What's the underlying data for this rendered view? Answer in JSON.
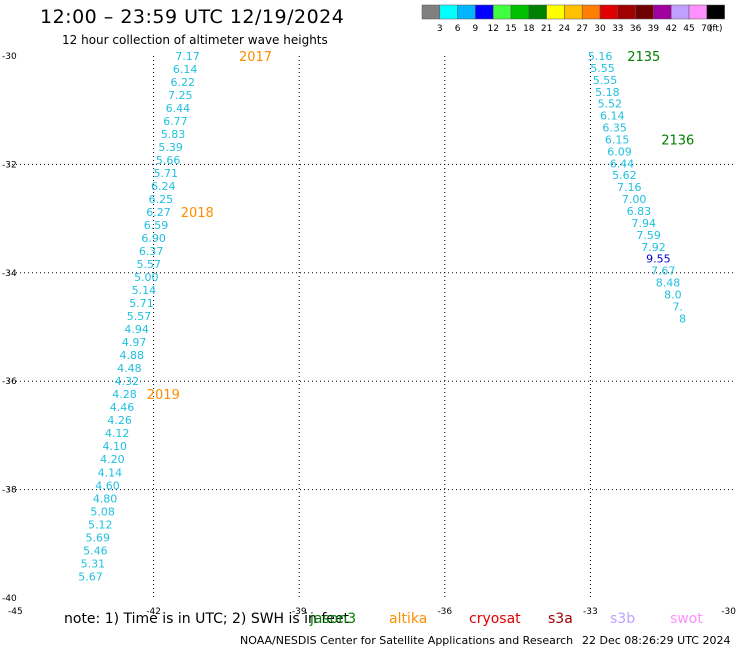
{
  "header": {
    "title": "12:00 – 23:59 UTC 12/19/2024",
    "subtitle": "12 hour collection of altimeter wave heights"
  },
  "colorbar": {
    "colors": [
      "#808080",
      "#00ffff",
      "#00b4ff",
      "#0000ff",
      "#40ff40",
      "#00c000",
      "#008000",
      "#ffff00",
      "#ffc000",
      "#ff8000",
      "#e00000",
      "#a00000",
      "#700000",
      "#a000a0",
      "#c0a0ff",
      "#ff90ff",
      "#000000"
    ],
    "labels": [
      "3",
      "6",
      "9",
      "12",
      "15",
      "18",
      "21",
      "24",
      "27",
      "30",
      "33",
      "36",
      "39",
      "42",
      "45",
      "70",
      "(ft)"
    ]
  },
  "chart_data": {
    "type": "scatter",
    "title": "12:00 – 23:59 UTC 12/19/2024",
    "xlabel": "",
    "ylabel": "",
    "xlim": [
      -45,
      -30
    ],
    "ylim": [
      -40,
      -30
    ],
    "x_ticks": [
      "-45",
      "-42",
      "-39",
      "-36",
      "-33",
      "-30"
    ],
    "y_ticks": [
      "-30",
      "-32",
      "-34",
      "-36",
      "-38",
      "-40"
    ],
    "grid": true,
    "tracks": [
      {
        "name": "2017",
        "name_color": "#ff8c00",
        "label_pos": [
          -39.9,
          -30.0
        ],
        "points": [
          {
            "lon": -41.3,
            "lat": -30.0,
            "swh": "7.17",
            "color": "#20c0e0"
          },
          {
            "lon": -41.35,
            "lat": -30.24,
            "swh": "6.14",
            "color": "#20c0e0"
          },
          {
            "lon": -41.4,
            "lat": -30.48,
            "swh": "6.22",
            "color": "#20c0e0"
          },
          {
            "lon": -41.45,
            "lat": -30.72,
            "swh": "7.25",
            "color": "#20c0e0"
          },
          {
            "lon": -41.5,
            "lat": -30.96,
            "swh": "6.44",
            "color": "#20c0e0"
          },
          {
            "lon": -41.55,
            "lat": -31.2,
            "swh": "6.77",
            "color": "#20c0e0"
          },
          {
            "lon": -41.6,
            "lat": -31.44,
            "swh": "5.83",
            "color": "#20c0e0"
          },
          {
            "lon": -41.65,
            "lat": -31.68,
            "swh": "5.39",
            "color": "#20c0e0"
          },
          {
            "lon": -41.7,
            "lat": -31.92,
            "swh": "5.66",
            "color": "#20c0e0"
          },
          {
            "lon": -41.75,
            "lat": -32.16,
            "swh": "5.71",
            "color": "#20c0e0"
          },
          {
            "lon": -41.8,
            "lat": -32.4,
            "swh": "6.24",
            "color": "#20c0e0"
          },
          {
            "lon": -41.85,
            "lat": -32.64,
            "swh": "6.25",
            "color": "#20c0e0"
          },
          {
            "lon": -41.9,
            "lat": -32.88,
            "swh": "6.27",
            "color": "#20c0e0"
          }
        ]
      },
      {
        "name": "2018",
        "name_color": "#ff8c00",
        "label_pos": [
          -41.1,
          -32.88
        ],
        "points": [
          {
            "lon": -41.95,
            "lat": -33.12,
            "swh": "6.59",
            "color": "#20c0e0"
          },
          {
            "lon": -42.0,
            "lat": -33.36,
            "swh": "6.90",
            "color": "#20c0e0"
          },
          {
            "lon": -42.05,
            "lat": -33.6,
            "swh": "6.37",
            "color": "#20c0e0"
          },
          {
            "lon": -42.1,
            "lat": -33.84,
            "swh": "5.57",
            "color": "#20c0e0"
          },
          {
            "lon": -42.15,
            "lat": -34.08,
            "swh": "5.00",
            "color": "#20c0e0"
          },
          {
            "lon": -42.2,
            "lat": -34.32,
            "swh": "5.14",
            "color": "#20c0e0"
          },
          {
            "lon": -42.25,
            "lat": -34.56,
            "swh": "5.71",
            "color": "#20c0e0"
          },
          {
            "lon": -42.3,
            "lat": -34.8,
            "swh": "5.57",
            "color": "#20c0e0"
          },
          {
            "lon": -42.35,
            "lat": -35.04,
            "swh": "4.94",
            "color": "#20c0e0"
          },
          {
            "lon": -42.4,
            "lat": -35.28,
            "swh": "4.97",
            "color": "#20c0e0"
          },
          {
            "lon": -42.45,
            "lat": -35.52,
            "swh": "4.88",
            "color": "#20c0e0"
          },
          {
            "lon": -42.5,
            "lat": -35.76,
            "swh": "4.48",
            "color": "#20c0e0"
          },
          {
            "lon": -42.55,
            "lat": -36.0,
            "swh": "4.32",
            "color": "#20c0e0"
          }
        ]
      },
      {
        "name": "2019",
        "name_color": "#ff8c00",
        "label_pos": [
          -41.8,
          -36.24
        ],
        "points": [
          {
            "lon": -42.6,
            "lat": -36.24,
            "swh": "4.28",
            "color": "#20c0e0"
          },
          {
            "lon": -42.65,
            "lat": -36.48,
            "swh": "4.46",
            "color": "#20c0e0"
          },
          {
            "lon": -42.7,
            "lat": -36.72,
            "swh": "4.26",
            "color": "#20c0e0"
          },
          {
            "lon": -42.75,
            "lat": -36.96,
            "swh": "4.12",
            "color": "#20c0e0"
          },
          {
            "lon": -42.8,
            "lat": -37.2,
            "swh": "4.10",
            "color": "#20c0e0"
          },
          {
            "lon": -42.85,
            "lat": -37.44,
            "swh": "4.20",
            "color": "#20c0e0"
          },
          {
            "lon": -42.9,
            "lat": -37.68,
            "swh": "4.14",
            "color": "#20c0e0"
          },
          {
            "lon": -42.95,
            "lat": -37.92,
            "swh": "4.60",
            "color": "#20c0e0"
          },
          {
            "lon": -43.0,
            "lat": -38.16,
            "swh": "4.80",
            "color": "#20c0e0"
          },
          {
            "lon": -43.05,
            "lat": -38.4,
            "swh": "5.08",
            "color": "#20c0e0"
          },
          {
            "lon": -43.1,
            "lat": -38.64,
            "swh": "5.12",
            "color": "#20c0e0"
          },
          {
            "lon": -43.15,
            "lat": -38.88,
            "swh": "5.69",
            "color": "#20c0e0"
          },
          {
            "lon": -43.2,
            "lat": -39.12,
            "swh": "5.46",
            "color": "#20c0e0"
          },
          {
            "lon": -43.25,
            "lat": -39.36,
            "swh": "5.31",
            "color": "#20c0e0"
          },
          {
            "lon": -43.3,
            "lat": -39.6,
            "swh": "5.67",
            "color": "#20c0e0"
          }
        ]
      },
      {
        "name": "2135",
        "name_color": "#008000",
        "label_pos": [
          -31.9,
          -30.0
        ],
        "points": [
          {
            "lon": -32.8,
            "lat": -30.0,
            "swh": "5.16",
            "color": "#20c0e0"
          },
          {
            "lon": -32.75,
            "lat": -30.22,
            "swh": "5.55",
            "color": "#20c0e0"
          },
          {
            "lon": -32.7,
            "lat": -30.44,
            "swh": "5.55",
            "color": "#20c0e0"
          },
          {
            "lon": -32.65,
            "lat": -30.66,
            "swh": "5.18",
            "color": "#20c0e0"
          },
          {
            "lon": -32.6,
            "lat": -30.88,
            "swh": "5.52",
            "color": "#20c0e0"
          },
          {
            "lon": -32.55,
            "lat": -31.1,
            "swh": "6.14",
            "color": "#20c0e0"
          },
          {
            "lon": -32.5,
            "lat": -31.32,
            "swh": "6.35",
            "color": "#20c0e0"
          },
          {
            "lon": -32.45,
            "lat": -31.54,
            "swh": "6.15",
            "color": "#20c0e0"
          }
        ]
      },
      {
        "name": "2136",
        "name_color": "#008000",
        "label_pos": [
          -31.2,
          -31.54
        ],
        "points": [
          {
            "lon": -32.4,
            "lat": -31.76,
            "swh": "6.09",
            "color": "#20c0e0"
          },
          {
            "lon": -32.35,
            "lat": -31.98,
            "swh": "6.44",
            "color": "#20c0e0"
          },
          {
            "lon": -32.3,
            "lat": -32.2,
            "swh": "5.62",
            "color": "#20c0e0"
          },
          {
            "lon": -32.2,
            "lat": -32.42,
            "swh": "7.16",
            "color": "#20c0e0"
          },
          {
            "lon": -32.1,
            "lat": -32.64,
            "swh": "7.00",
            "color": "#20c0e0"
          },
          {
            "lon": -32.0,
            "lat": -32.86,
            "swh": "6.83",
            "color": "#20c0e0"
          },
          {
            "lon": -31.9,
            "lat": -33.08,
            "swh": "7.94",
            "color": "#20c0e0"
          },
          {
            "lon": -31.8,
            "lat": -33.3,
            "swh": "7.59",
            "color": "#20c0e0"
          },
          {
            "lon": -31.7,
            "lat": -33.52,
            "swh": "7.92",
            "color": "#20c0e0"
          },
          {
            "lon": -31.6,
            "lat": -33.74,
            "swh": "9.55",
            "color": "#0000cc"
          },
          {
            "lon": -31.5,
            "lat": -33.96,
            "swh": "7.67",
            "color": "#20c0e0"
          },
          {
            "lon": -31.4,
            "lat": -34.18,
            "swh": "8.48",
            "color": "#20c0e0"
          },
          {
            "lon": -31.3,
            "lat": -34.4,
            "swh": "8.0",
            "color": "#20c0e0"
          },
          {
            "lon": -31.2,
            "lat": -34.62,
            "swh": "7.",
            "color": "#20c0e0"
          },
          {
            "lon": -31.1,
            "lat": -34.84,
            "swh": "8",
            "color": "#20c0e0"
          }
        ]
      }
    ]
  },
  "footer": {
    "note": "note: 1) Time is in UTC; 2) SWH is in feet",
    "legend": [
      {
        "label": "jason3",
        "color": "#008000"
      },
      {
        "label": "altika",
        "color": "#ff8c00"
      },
      {
        "label": "cryosat",
        "color": "#e00000"
      },
      {
        "label": "s3a",
        "color": "#a00000"
      },
      {
        "label": "s3b",
        "color": "#c0a0ff"
      },
      {
        "label": "swot",
        "color": "#ff90ff"
      }
    ],
    "credit": "NOAA/NESDIS Center for Satellite Applications and Research",
    "stamp": "22 Dec 08:26:29 UTC 2024"
  }
}
